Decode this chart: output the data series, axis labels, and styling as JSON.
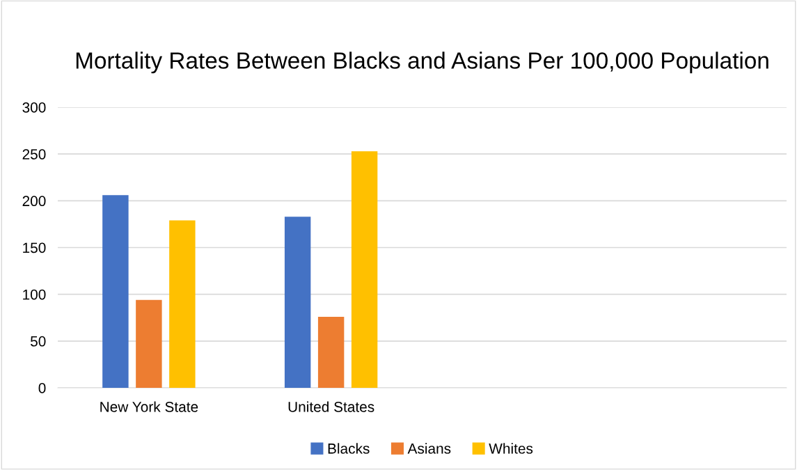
{
  "chart_data": {
    "type": "bar",
    "title": "Mortality Rates Between Blacks and Asians Per 100,000 Population",
    "categories": [
      "New York State",
      "United States",
      null,
      null
    ],
    "series": [
      {
        "name": "Blacks",
        "color": "#4472c4",
        "values": [
          206,
          183,
          null,
          null
        ]
      },
      {
        "name": "Asians",
        "color": "#ed7d31",
        "values": [
          94,
          76,
          null,
          null
        ]
      },
      {
        "name": "Whites",
        "color": "#ffc000",
        "values": [
          179,
          253,
          null,
          null
        ]
      }
    ],
    "ylim": [
      0,
      300
    ],
    "yticks": [
      0,
      50,
      100,
      150,
      200,
      250,
      300
    ],
    "grid": "y",
    "legend": "bottom"
  }
}
